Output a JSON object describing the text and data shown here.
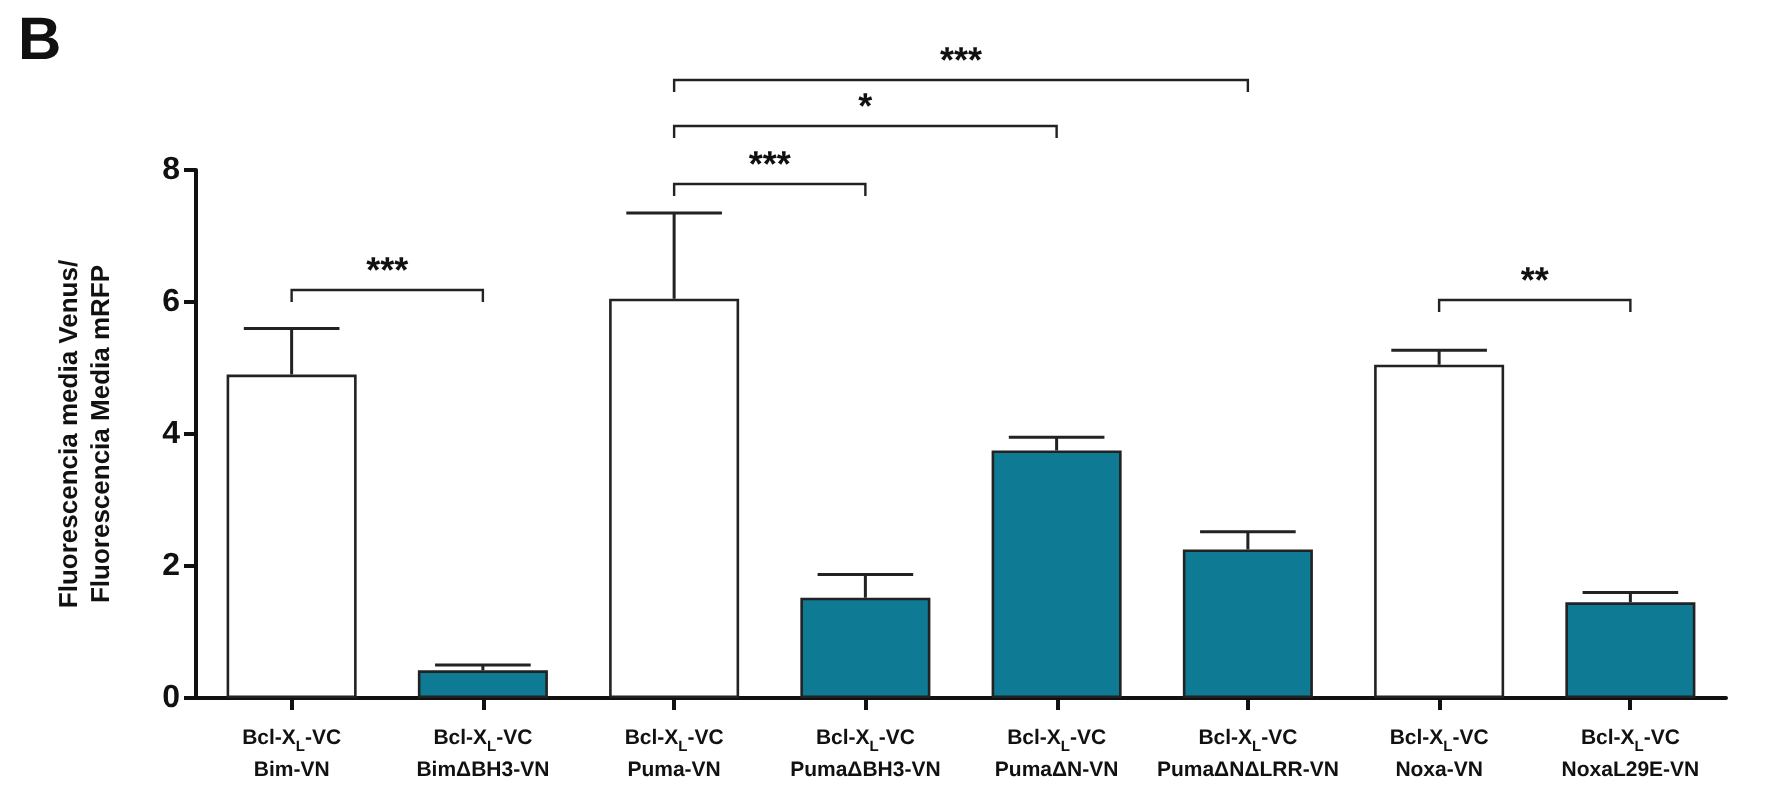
{
  "chart_data": {
    "type": "bar",
    "title": "B",
    "ylabel": "Fluorescencia media Venus/\nFluorescencia Media mRFP",
    "categories": [
      "Bcl-X$_{L}$-VC\nBim-VN",
      "Bcl-X$_{L}$-VC\nBimΔBH3-VN",
      "Bcl-X$_{L}$-VC\nPuma-VN",
      "Bcl-X$_{L}$-VC\nPumaΔBH3-VN",
      "Bcl-X$_{L}$-VC\nPumaΔN-VN",
      "Bcl-X$_{L}$-VC\nPumaΔNΔLRR-VN",
      "Bcl-X$_{L}$-VC\nNoxa-VN",
      "Bcl-X$_{L}$-VC\nNoxaL29E-VN"
    ],
    "values": [
      4.9,
      0.42,
      6.05,
      1.52,
      3.75,
      2.25,
      5.05,
      1.45
    ],
    "errors": [
      [
        4.9,
        5.6
      ],
      [
        0.42,
        0.5
      ],
      [
        6.05,
        7.35
      ],
      [
        1.52,
        1.87
      ],
      [
        3.75,
        3.95
      ],
      [
        2.25,
        2.52
      ],
      [
        5.05,
        5.27
      ],
      [
        1.45,
        1.6
      ]
    ],
    "colors": [
      "#ffffff",
      "#0f7a93",
      "#ffffff",
      "#0f7a93",
      "#0f7a93",
      "#0f7a93",
      "#ffffff",
      "#0f7a93"
    ],
    "ylim": [
      0,
      8
    ],
    "yticks": [
      0,
      2,
      4,
      6,
      8
    ],
    "grid": false,
    "annotations": [
      "***",
      "***",
      "*",
      "***",
      "**"
    ]
  }
}
